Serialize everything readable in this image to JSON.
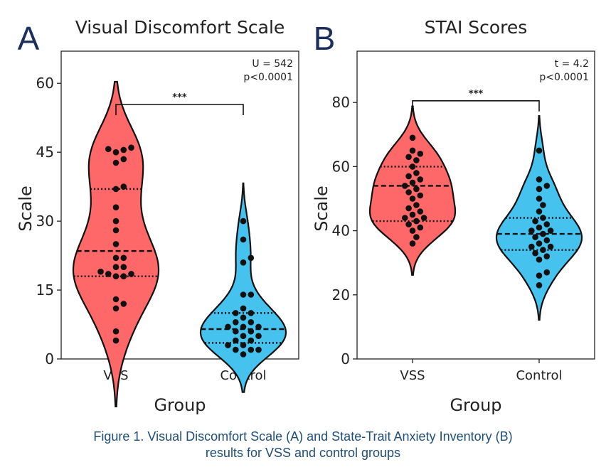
{
  "caption": {
    "line1": "Figure 1. Visual Discomfort Scale (A) and State-Trait Anxiety Inventory (B)",
    "line2": "results for VSS and control groups"
  },
  "colors": {
    "vss": "#fe6868",
    "control": "#45c2ee",
    "letter": "#1a2f5c",
    "caption": "#1f4e79"
  },
  "chart_data": [
    {
      "type": "violin",
      "panel_letter": "A",
      "title": "Visual Discomfort Scale",
      "xlabel": "Group",
      "ylabel": "Scale",
      "ylim": [
        0,
        67
      ],
      "yticks": [
        0,
        15,
        30,
        45,
        60
      ],
      "categories": [
        "VSS",
        "Control"
      ],
      "annotation": {
        "lines": [
          "U = 542",
          "p<0.0001"
        ],
        "significance": "***"
      },
      "groups": [
        {
          "name": "VSS",
          "color": "#fe6868",
          "quartiles": {
            "q1": 18,
            "median": 23.5,
            "q3": 37
          },
          "points": [
            46,
            45.5,
            45,
            45.7,
            43.5,
            42.7,
            37.5,
            37,
            33,
            30,
            28,
            25,
            22,
            22,
            20,
            20,
            19,
            18.5,
            18,
            18,
            18.5,
            13,
            12,
            11,
            6,
            4
          ]
        },
        {
          "name": "Control",
          "color": "#45c2ee",
          "quartiles": {
            "q1": 3.5,
            "median": 6.5,
            "q3": 10
          },
          "points": [
            30,
            26,
            22,
            21,
            14,
            14,
            11,
            10,
            10,
            9,
            8,
            8,
            7,
            7,
            7,
            6,
            6,
            5,
            5,
            4,
            4,
            3,
            3,
            2,
            2,
            2,
            1
          ]
        }
      ]
    },
    {
      "type": "violin",
      "panel_letter": "B",
      "title": "STAI Scores",
      "xlabel": "Group",
      "ylabel": "Scale",
      "ylim": [
        0,
        96
      ],
      "yticks": [
        0,
        20,
        40,
        60,
        80
      ],
      "categories": [
        "VSS",
        "Control"
      ],
      "annotation": {
        "lines": [
          "t = 4.2",
          "p<0.0001"
        ],
        "significance": "***"
      },
      "groups": [
        {
          "name": "VSS",
          "color": "#fe6868",
          "quartiles": {
            "q1": 43,
            "median": 54,
            "q3": 60
          },
          "points": [
            69,
            65,
            64,
            63,
            62,
            60,
            58,
            57,
            56,
            55,
            54,
            53,
            52,
            51,
            50,
            48,
            47,
            46,
            45,
            44,
            44,
            43,
            42,
            41,
            40,
            38,
            36
          ]
        },
        {
          "name": "Control",
          "color": "#45c2ee",
          "quartiles": {
            "q1": 34,
            "median": 39,
            "q3": 44
          },
          "points": [
            65,
            56,
            54,
            53,
            50,
            48,
            46,
            44,
            43,
            42,
            41,
            40,
            40,
            39,
            38,
            37,
            36,
            35,
            35,
            34,
            33,
            32,
            31,
            27,
            26,
            23
          ]
        }
      ]
    }
  ]
}
